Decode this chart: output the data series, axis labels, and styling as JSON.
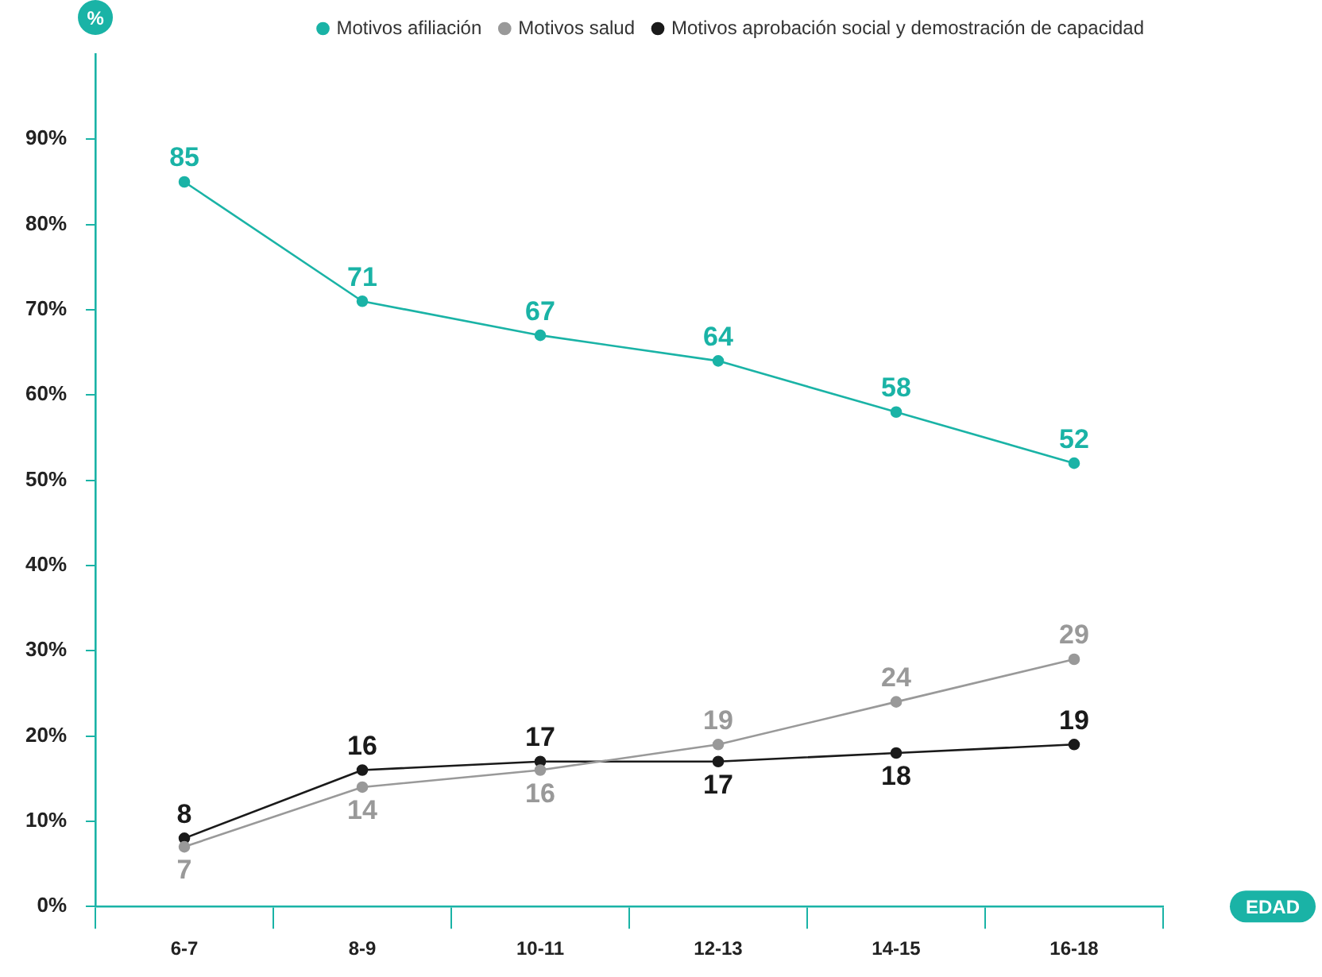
{
  "chart_data": {
    "type": "line",
    "xlabel": "EDAD",
    "ylabel": "%",
    "categories": [
      "6-7",
      "8-9",
      "10-11",
      "12-13",
      "14-15",
      "16-18"
    ],
    "series": [
      {
        "name": "Motivos afiliación",
        "color": "#1ab3a6",
        "values": [
          85,
          71,
          67,
          64,
          58,
          52
        ]
      },
      {
        "name": "Motivos salud",
        "color": "#999999",
        "values": [
          7,
          14,
          16,
          19,
          24,
          29
        ]
      },
      {
        "name": "Motivos aprobación social y demostración de capacidad",
        "color": "#1a1a1a",
        "values": [
          8,
          16,
          17,
          17,
          18,
          19
        ]
      }
    ],
    "ylim": [
      0,
      100
    ],
    "yticks": [
      {
        "value": 0,
        "label": "0%"
      },
      {
        "value": 10,
        "label": "10%"
      },
      {
        "value": 20,
        "label": "20%"
      },
      {
        "value": 30,
        "label": "30%"
      },
      {
        "value": 40,
        "label": "40%"
      },
      {
        "value": 50,
        "label": "50%"
      },
      {
        "value": 60,
        "label": "60%"
      },
      {
        "value": 70,
        "label": "70%"
      },
      {
        "value": 80,
        "label": "80%"
      },
      {
        "value": 90,
        "label": "90%"
      }
    ],
    "data_labels": true,
    "legend": "top right",
    "marker": "circle",
    "line_style": "solid"
  }
}
